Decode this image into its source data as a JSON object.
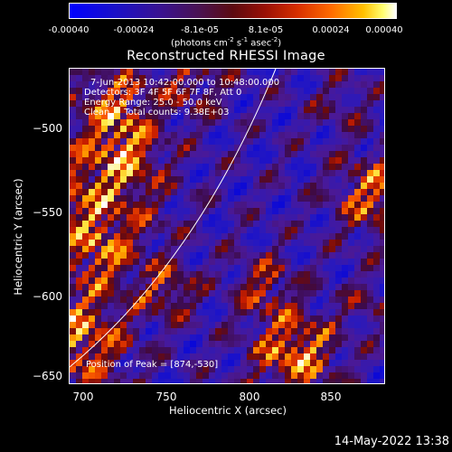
{
  "colorbar": {
    "ticks": [
      "-0.00040",
      "-0.00024",
      "-8.1e-05",
      "8.1e-05",
      "0.00024",
      "0.00040"
    ],
    "units_label": "(photons cm",
    "units_exp1": "-2",
    "units_mid": " s",
    "units_exp2": "-1",
    "units_end": " asec",
    "units_exp3": "-2",
    "units_close": ")"
  },
  "title": "Reconstructed RHESSI Image",
  "annotations": {
    "time_range": "7-Jun-2013 10:42:00.000 to 10:48:00.000",
    "detectors": "Detectors: 3F 4F 5F 6F 7F 8F, Att 0",
    "energy": "Energy Range: 25.0 - 50.0 keV",
    "clean": "Clean     Total counts: 9.38E+03",
    "peak": "Position of Peak = [874,-530]"
  },
  "axes": {
    "x_label": "Heliocentric X (arcsec)",
    "y_label": "Heliocentric Y (arcsec)",
    "x_ticks": [
      "700",
      "750",
      "800",
      "850"
    ],
    "y_ticks": [
      "−500",
      "−550",
      "−600",
      "−650"
    ]
  },
  "timestamp": "14-May-2022 13:38",
  "colors": {
    "colormap": [
      "#0000ff",
      "#3a1290",
      "#4a1250",
      "#9a1005",
      "#ff6a00",
      "#ffc000",
      "#ffffff"
    ]
  }
}
